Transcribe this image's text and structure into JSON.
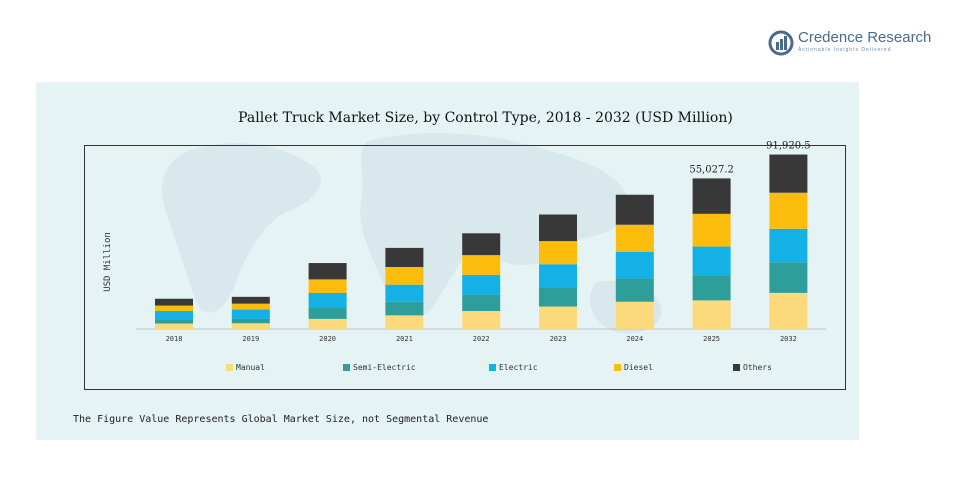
{
  "brand": {
    "name": "Credence Research",
    "tagline": "Actionable Insights Delivered"
  },
  "note": "The Figure Value Represents Global Market Size, not Segmental Revenue",
  "chart_data": {
    "type": "bar",
    "stacked": true,
    "title": "Pallet Truck Market Size, by Control Type, 2018 - 2032 (USD Million)",
    "xlabel": "",
    "ylabel": "USD Million",
    "categories": [
      "2018",
      "2019",
      "2020",
      "2021",
      "2022",
      "2023",
      "2024",
      "2025",
      "2032"
    ],
    "series": [
      {
        "name": "Manual",
        "color": "#fcd97a",
        "values": [
          4000,
          4200,
          7400,
          10000,
          13200,
          16500,
          20000,
          21000,
          26500
        ]
      },
      {
        "name": "Semi-Electric",
        "color": "#2e9e9b",
        "values": [
          3200,
          3200,
          8000,
          10000,
          12000,
          14000,
          17000,
          18500,
          22500
        ]
      },
      {
        "name": "Electric",
        "color": "#14b1e6",
        "values": [
          6000,
          7000,
          11000,
          12500,
          14500,
          17000,
          19500,
          21000,
          24500
        ]
      },
      {
        "name": "Diesel",
        "color": "#fcbc0c",
        "values": [
          4000,
          4200,
          10000,
          13000,
          14500,
          17000,
          20000,
          24000,
          26500
        ]
      },
      {
        "name": "Others",
        "color": "#383838",
        "values": [
          5000,
          5000,
          12000,
          14000,
          16000,
          19500,
          22000,
          26000,
          28000
        ]
      }
    ],
    "data_labels": [
      {
        "category": "2025",
        "text": "55,027.2"
      },
      {
        "category": "2032",
        "text": "91,920.5"
      }
    ],
    "ylim": [
      0,
      135000
    ],
    "grid": false,
    "legend": "bottom"
  }
}
